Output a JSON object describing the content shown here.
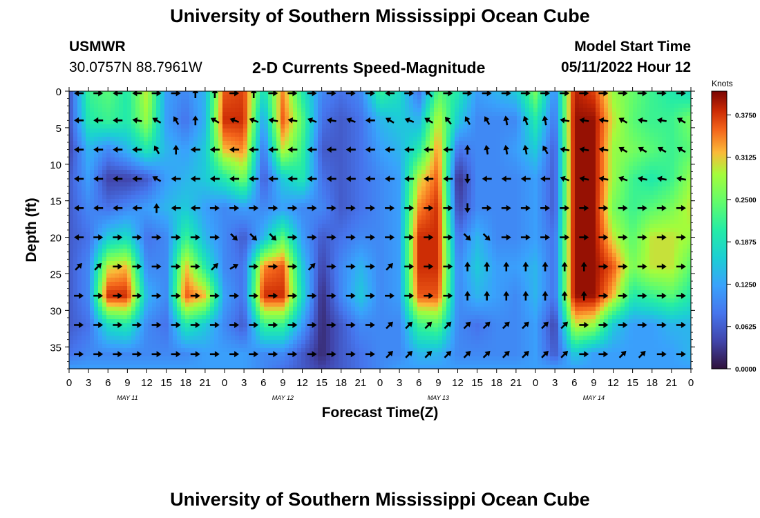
{
  "page": {
    "title": "University of Southern Mississippi Ocean Cube",
    "footer_title": "University of Southern Mississippi Ocean Cube",
    "station": "USMWR",
    "coords": "30.0757N  88.7961W",
    "subtitle": "2-D Currents Speed-Magnitude",
    "model_start_label": "Model Start Time",
    "model_start_value": "05/11/2022 Hour 12"
  },
  "chart_data": {
    "type": "heatmap",
    "title": "2-D Currents Speed-Magnitude",
    "xlabel": "Forecast Time(Z)",
    "ylabel": "Depth (ft)",
    "x_tick_labels": [
      "0",
      "3",
      "6",
      "9",
      "12",
      "15",
      "18",
      "21",
      "0",
      "3",
      "6",
      "9",
      "12",
      "15",
      "18",
      "21",
      "0",
      "3",
      "6",
      "9",
      "12",
      "15",
      "18",
      "21",
      "0",
      "3",
      "6",
      "9",
      "12",
      "15",
      "18",
      "21",
      "0"
    ],
    "day_labels": [
      "MAY 11",
      "MAY 12",
      "MAY 13",
      "MAY 14"
    ],
    "y_ticks": [
      0,
      5,
      10,
      15,
      20,
      25,
      30,
      35
    ],
    "ylim": [
      38,
      0
    ],
    "colorbar": {
      "unit": "Knots",
      "ticks": [
        "0.0000",
        "0.0625",
        "0.1250",
        "0.1875",
        "0.2500",
        "0.3125",
        "0.3750"
      ],
      "range": [
        0,
        0.41
      ]
    },
    "x_hours": [
      0,
      3,
      6,
      9,
      12,
      15,
      18,
      21,
      24,
      27,
      30,
      33,
      36,
      39,
      42,
      45,
      48,
      51,
      54,
      57,
      60,
      63,
      66,
      69,
      72,
      75,
      78,
      81,
      84,
      87,
      90,
      93,
      96
    ],
    "depth_levels_ft": [
      0,
      4,
      8,
      12,
      16,
      20,
      24,
      28,
      32,
      36,
      38
    ],
    "speed_knots": [
      [
        0.05,
        0.22,
        0.24,
        0.2,
        0.3,
        0.12,
        0.1,
        0.14,
        0.36,
        0.37,
        0.18,
        0.34,
        0.2,
        0.1,
        0.08,
        0.1,
        0.22,
        0.18,
        0.08,
        0.24,
        0.2,
        0.12,
        0.14,
        0.16,
        0.26,
        0.1,
        0.39,
        0.37,
        0.28,
        0.25,
        0.22,
        0.2,
        0.18
      ],
      [
        0.05,
        0.2,
        0.22,
        0.2,
        0.28,
        0.12,
        0.08,
        0.14,
        0.38,
        0.38,
        0.12,
        0.36,
        0.24,
        0.08,
        0.06,
        0.08,
        0.14,
        0.16,
        0.14,
        0.3,
        0.16,
        0.1,
        0.1,
        0.1,
        0.2,
        0.08,
        0.4,
        0.4,
        0.3,
        0.24,
        0.22,
        0.22,
        0.26
      ],
      [
        0.04,
        0.14,
        0.1,
        0.14,
        0.2,
        0.14,
        0.12,
        0.16,
        0.32,
        0.34,
        0.08,
        0.3,
        0.22,
        0.06,
        0.06,
        0.08,
        0.12,
        0.14,
        0.2,
        0.34,
        0.08,
        0.1,
        0.1,
        0.12,
        0.16,
        0.06,
        0.4,
        0.4,
        0.28,
        0.26,
        0.24,
        0.22,
        0.24
      ],
      [
        0.06,
        0.12,
        0.04,
        0.04,
        0.06,
        0.12,
        0.14,
        0.16,
        0.2,
        0.26,
        0.06,
        0.16,
        0.2,
        0.08,
        0.06,
        0.08,
        0.1,
        0.12,
        0.3,
        0.36,
        0.02,
        0.1,
        0.1,
        0.1,
        0.12,
        0.06,
        0.4,
        0.4,
        0.28,
        0.22,
        0.2,
        0.22,
        0.28
      ],
      [
        0.06,
        0.1,
        0.08,
        0.1,
        0.12,
        0.14,
        0.16,
        0.12,
        0.1,
        0.12,
        0.1,
        0.12,
        0.1,
        0.1,
        0.06,
        0.08,
        0.1,
        0.12,
        0.34,
        0.38,
        0.04,
        0.1,
        0.1,
        0.1,
        0.12,
        0.06,
        0.4,
        0.4,
        0.26,
        0.22,
        0.24,
        0.26,
        0.3
      ],
      [
        0.06,
        0.08,
        0.16,
        0.18,
        0.08,
        0.1,
        0.22,
        0.14,
        0.1,
        0.06,
        0.14,
        0.24,
        0.12,
        0.06,
        0.08,
        0.1,
        0.1,
        0.12,
        0.38,
        0.38,
        0.08,
        0.14,
        0.1,
        0.1,
        0.12,
        0.08,
        0.4,
        0.4,
        0.3,
        0.24,
        0.3,
        0.3,
        0.28
      ],
      [
        0.06,
        0.1,
        0.3,
        0.32,
        0.1,
        0.1,
        0.32,
        0.2,
        0.1,
        0.08,
        0.34,
        0.36,
        0.16,
        0.04,
        0.1,
        0.14,
        0.1,
        0.12,
        0.38,
        0.38,
        0.1,
        0.16,
        0.12,
        0.12,
        0.14,
        0.08,
        0.4,
        0.4,
        0.36,
        0.26,
        0.3,
        0.3,
        0.24
      ],
      [
        0.06,
        0.1,
        0.38,
        0.38,
        0.14,
        0.1,
        0.36,
        0.32,
        0.12,
        0.08,
        0.38,
        0.38,
        0.18,
        0.02,
        0.1,
        0.16,
        0.1,
        0.12,
        0.36,
        0.36,
        0.1,
        0.14,
        0.12,
        0.1,
        0.14,
        0.08,
        0.4,
        0.4,
        0.32,
        0.2,
        0.22,
        0.24,
        0.2
      ],
      [
        0.06,
        0.08,
        0.18,
        0.2,
        0.1,
        0.08,
        0.2,
        0.16,
        0.1,
        0.06,
        0.22,
        0.22,
        0.12,
        0.02,
        0.06,
        0.1,
        0.1,
        0.1,
        0.22,
        0.24,
        0.1,
        0.08,
        0.1,
        0.1,
        0.12,
        0.04,
        0.3,
        0.28,
        0.16,
        0.12,
        0.12,
        0.14,
        0.14
      ],
      [
        0.08,
        0.1,
        0.1,
        0.1,
        0.1,
        0.1,
        0.1,
        0.12,
        0.12,
        0.12,
        0.1,
        0.1,
        0.06,
        0.02,
        0.06,
        0.08,
        0.1,
        0.1,
        0.14,
        0.14,
        0.1,
        0.1,
        0.1,
        0.1,
        0.12,
        0.06,
        0.16,
        0.12,
        0.12,
        0.12,
        0.12,
        0.12,
        0.14
      ],
      [
        0.12,
        0.12,
        0.12,
        0.12,
        0.12,
        0.12,
        0.12,
        0.12,
        0.12,
        0.12,
        0.1,
        0.08,
        0.06,
        0.04,
        0.06,
        0.08,
        0.1,
        0.12,
        0.12,
        0.12,
        0.12,
        0.12,
        0.12,
        0.12,
        0.12,
        0.12,
        0.12,
        0.12,
        0.12,
        0.12,
        0.12,
        0.12,
        0.12
      ]
    ],
    "vector_grid_depths_ft": [
      0,
      4,
      8,
      12,
      16,
      20,
      24,
      28,
      32,
      36
    ],
    "vector_grid_x_start_hour": 1.5,
    "vector_grid_x_step_hour": 3,
    "vector_direction_deg": [
      [
        180,
        0,
        180,
        180,
        0,
        0,
        90,
        90,
        0,
        90,
        0,
        0,
        0,
        0,
        0,
        0,
        180,
        0,
        135,
        0,
        0,
        0,
        0,
        0,
        0,
        0,
        0,
        0,
        0,
        0,
        0,
        0
      ],
      [
        180,
        180,
        180,
        170,
        150,
        120,
        90,
        150,
        160,
        160,
        170,
        170,
        160,
        170,
        160,
        180,
        150,
        160,
        150,
        130,
        120,
        120,
        100,
        110,
        100,
        170,
        170,
        170,
        150,
        170,
        170,
        150
      ],
      [
        180,
        180,
        180,
        180,
        120,
        90,
        180,
        180,
        180,
        180,
        180,
        180,
        180,
        180,
        180,
        180,
        180,
        180,
        180,
        180,
        90,
        100,
        100,
        100,
        120,
        170,
        170,
        170,
        150,
        150,
        150,
        150
      ],
      [
        180,
        180,
        180,
        180,
        150,
        180,
        180,
        180,
        180,
        180,
        180,
        180,
        180,
        180,
        180,
        180,
        180,
        180,
        180,
        180,
        270,
        180,
        180,
        180,
        180,
        160,
        170,
        170,
        160,
        170,
        170,
        170
      ],
      [
        180,
        180,
        180,
        180,
        90,
        180,
        180,
        0,
        0,
        0,
        0,
        0,
        0,
        0,
        0,
        0,
        0,
        0,
        0,
        0,
        270,
        0,
        0,
        0,
        0,
        0,
        0,
        0,
        0,
        0,
        0,
        0
      ],
      [
        180,
        0,
        0,
        0,
        0,
        0,
        0,
        0,
        315,
        315,
        315,
        0,
        0,
        0,
        0,
        0,
        0,
        0,
        0,
        0,
        315,
        315,
        0,
        0,
        0,
        0,
        0,
        0,
        0,
        0,
        0,
        0
      ],
      [
        45,
        45,
        0,
        0,
        0,
        0,
        0,
        45,
        30,
        0,
        0,
        0,
        45,
        0,
        0,
        0,
        45,
        0,
        0,
        0,
        90,
        90,
        90,
        90,
        90,
        90,
        90,
        0,
        0,
        0,
        0,
        0
      ],
      [
        0,
        0,
        0,
        0,
        0,
        0,
        0,
        0,
        0,
        0,
        0,
        0,
        0,
        0,
        0,
        0,
        0,
        0,
        0,
        0,
        90,
        90,
        90,
        90,
        90,
        90,
        90,
        0,
        0,
        0,
        0,
        0
      ],
      [
        0,
        0,
        0,
        0,
        0,
        0,
        0,
        0,
        0,
        0,
        0,
        0,
        0,
        0,
        0,
        0,
        45,
        45,
        45,
        45,
        45,
        45,
        45,
        45,
        45,
        45,
        0,
        0,
        0,
        0,
        0,
        0
      ],
      [
        0,
        0,
        0,
        0,
        0,
        0,
        0,
        0,
        0,
        0,
        0,
        0,
        0,
        0,
        0,
        0,
        45,
        45,
        45,
        45,
        45,
        45,
        45,
        45,
        45,
        45,
        0,
        0,
        45,
        45,
        0,
        0
      ]
    ]
  }
}
